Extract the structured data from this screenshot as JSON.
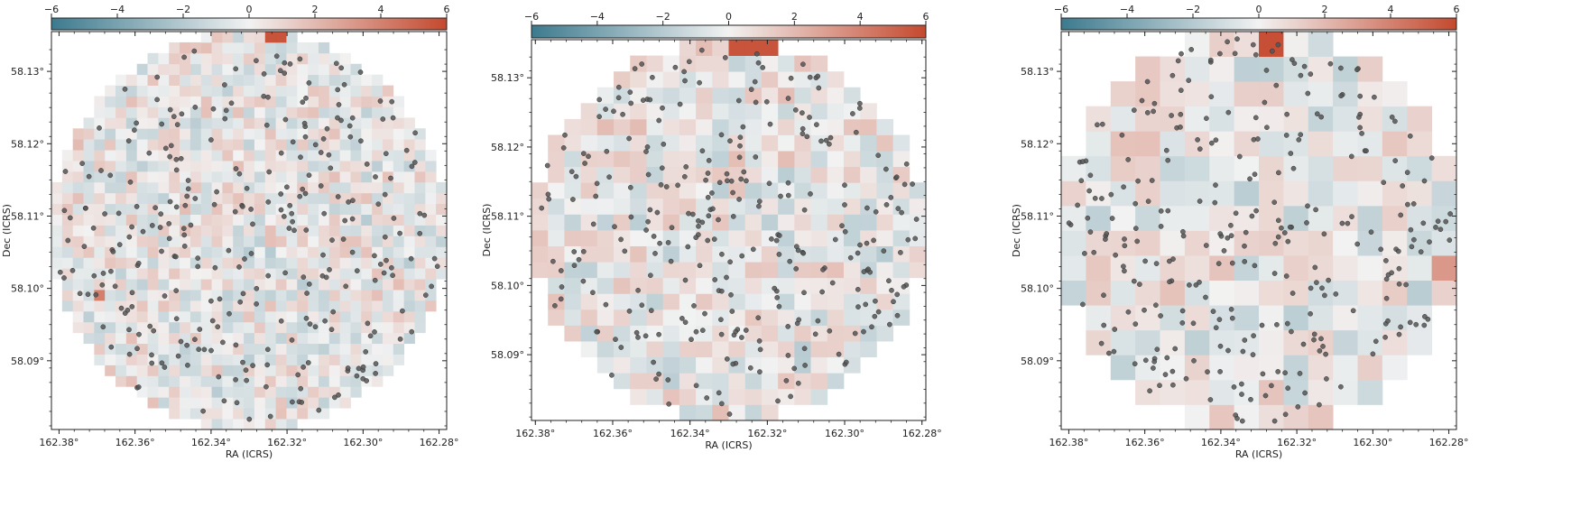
{
  "colorbar": {
    "colors": [
      "#3c7a8e",
      "#f2f2f2",
      "#c4492e"
    ]
  },
  "chart_data": [
    {
      "type": "heatmap",
      "title": "",
      "xlabel": "RA (ICRS)",
      "ylabel": "Dec (ICRS)",
      "xlim": [
        162.382,
        162.278
      ],
      "ylim": [
        58.0805,
        58.1355
      ],
      "x_ticks": [
        162.38,
        162.36,
        162.34,
        162.32,
        162.3,
        162.28
      ],
      "x_tick_labels": [
        "162.38°",
        "162.36°",
        "162.34°",
        "162.32°",
        "162.30°",
        "162.28°"
      ],
      "y_ticks": [
        58.09,
        58.1,
        58.11,
        58.12,
        58.13
      ],
      "y_tick_labels": [
        "58.09°",
        "58.10°",
        "58.11°",
        "58.12°",
        "58.13°"
      ],
      "colorbar_range": [
        -6,
        6
      ],
      "colorbar_ticks": [
        -6,
        -4,
        -2,
        0,
        2,
        4,
        6
      ],
      "colorbar_tick_labels": [
        "−6",
        "−4",
        "−2",
        "0",
        "2",
        "4",
        "6"
      ],
      "grid": false,
      "cells": [
        37,
        37
      ],
      "seed": 11,
      "hot_cells": [
        {
          "col": 20,
          "row": 36,
          "value": 5.6
        },
        {
          "col": 21,
          "row": 36,
          "value": 5.6
        },
        {
          "col": 4,
          "row": 12,
          "value": 4.1
        }
      ],
      "sources": 300
    },
    {
      "type": "heatmap",
      "title": "",
      "xlabel": "RA (ICRS)",
      "ylabel": "Dec (ICRS)",
      "xlim": [
        162.381,
        162.279
      ],
      "ylim": [
        58.0805,
        58.1355
      ],
      "x_ticks": [
        162.38,
        162.36,
        162.34,
        162.32,
        162.3,
        162.28
      ],
      "x_tick_labels": [
        "162.38°",
        "162.36°",
        "162.34°",
        "162.32°",
        "162.30°",
        "162.28°"
      ],
      "y_ticks": [
        58.09,
        58.1,
        58.11,
        58.12,
        58.13
      ],
      "y_tick_labels": [
        "58.09°",
        "58.10°",
        "58.11°",
        "58.12°",
        "58.13°"
      ],
      "colorbar_range": [
        -6,
        6
      ],
      "colorbar_ticks": [
        -6,
        -4,
        -2,
        0,
        2,
        4,
        6
      ],
      "colorbar_tick_labels": [
        "−6",
        "−4",
        "−2",
        "0",
        "2",
        "4",
        "6"
      ],
      "grid": false,
      "cells": [
        24,
        24
      ],
      "seed": 23,
      "hot_cells": [
        {
          "col": 12,
          "row": 23,
          "value": 5.6
        },
        {
          "col": 13,
          "row": 23,
          "value": 5.6
        },
        {
          "col": 14,
          "row": 23,
          "value": 5.6
        },
        {
          "col": 20,
          "row": 3,
          "value": 5.4
        }
      ],
      "sources": 300
    },
    {
      "type": "heatmap",
      "title": "",
      "xlabel": "RA (ICRS)",
      "ylabel": "Dec (ICRS)",
      "xlim": [
        162.382,
        162.278
      ],
      "ylim": [
        58.0805,
        58.1355
      ],
      "x_ticks": [
        162.38,
        162.36,
        162.34,
        162.32,
        162.3,
        162.28
      ],
      "x_tick_labels": [
        "162.38°",
        "162.36°",
        "162.34°",
        "162.32°",
        "162.30°",
        "162.28°"
      ],
      "y_ticks": [
        58.09,
        58.1,
        58.11,
        58.12,
        58.13
      ],
      "y_tick_labels": [
        "58.09°",
        "58.10°",
        "58.11°",
        "58.12°",
        "58.13°"
      ],
      "colorbar_range": [
        -6,
        6
      ],
      "colorbar_ticks": [
        -6,
        -4,
        -2,
        0,
        2,
        4,
        6
      ],
      "colorbar_tick_labels": [
        "−6",
        "−4",
        "−2",
        "0",
        "2",
        "4",
        "6"
      ],
      "grid": false,
      "cells": [
        16,
        16
      ],
      "seed": 37,
      "hot_cells": [
        {
          "col": 8,
          "row": 15,
          "value": 5.8
        },
        {
          "col": 0,
          "row": 11,
          "value": 3.6
        },
        {
          "col": 15,
          "row": 6,
          "value": 3.2
        }
      ],
      "sources": 300
    }
  ]
}
